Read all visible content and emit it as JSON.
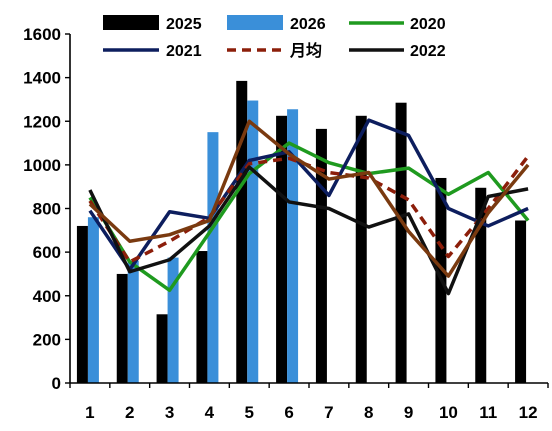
{
  "chart_data": {
    "type": "bar",
    "categories": [
      "1",
      "2",
      "3",
      "4",
      "5",
      "6",
      "7",
      "8",
      "9",
      "10",
      "11",
      "12"
    ],
    "ylim": [
      0,
      1600
    ],
    "yticks": [
      "0",
      "200",
      "400",
      "600",
      "800",
      "1000",
      "1200",
      "1400",
      "1600"
    ],
    "grid": false,
    "legend_position": "top",
    "bar_series": [
      {
        "name": "2025",
        "color": "#000000",
        "values": [
          720,
          500,
          315,
          605,
          1385,
          1225,
          1165,
          1225,
          1285,
          940,
          895,
          745
        ]
      },
      {
        "name": "2026",
        "color": "#3a8fd9",
        "values": [
          760,
          560,
          575,
          1150,
          1295,
          1255,
          null,
          null,
          null,
          null,
          null,
          null
        ]
      }
    ],
    "line_series": [
      {
        "name": "2020",
        "color": "#1f9a1f",
        "dash": false,
        "values": [
          850,
          555,
          425,
          690,
          960,
          1100,
          1010,
          960,
          985,
          865,
          965,
          745
        ]
      },
      {
        "name": "2021",
        "color": "#0d1e5e",
        "dash": false,
        "values": [
          790,
          520,
          785,
          755,
          1020,
          1060,
          860,
          1205,
          1135,
          800,
          720,
          800
        ]
      },
      {
        "name": "月均",
        "color": "#8c1e0a",
        "dash": true,
        "values": [
          835,
          555,
          650,
          760,
          1005,
          1030,
          965,
          940,
          840,
          580,
          800,
          1040
        ]
      },
      {
        "name": "2022",
        "color": "#111111",
        "dash": false,
        "values": [
          885,
          510,
          565,
          720,
          990,
          830,
          800,
          715,
          775,
          410,
          855,
          890
        ]
      },
      {
        "name": "",
        "color": "#7a3a10",
        "dash": false,
        "values": [
          820,
          650,
          680,
          745,
          1200,
          1050,
          935,
          965,
          695,
          490,
          780,
          1000
        ]
      }
    ]
  }
}
